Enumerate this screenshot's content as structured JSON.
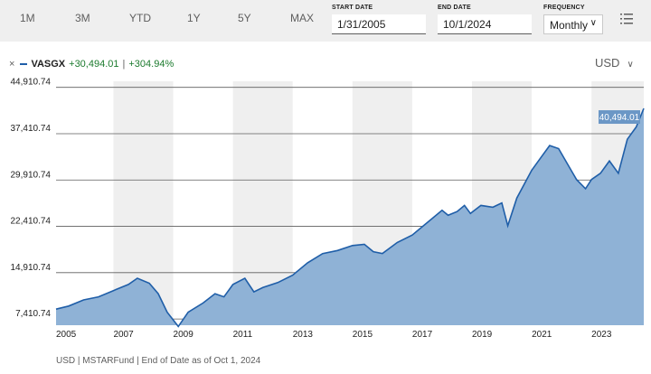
{
  "toolbar": {
    "ranges": [
      "1M",
      "3M",
      "YTD",
      "1Y",
      "5Y",
      "MAX"
    ],
    "start_date_label": "START DATE",
    "start_date": "1/31/2005",
    "end_date_label": "END DATE",
    "end_date": "10/1/2024",
    "frequency_label": "FREQUENCY",
    "frequency": "Monthly"
  },
  "legend": {
    "close_symbol": "×",
    "ticker": "VASGX",
    "gain": "+30,494.01",
    "separator": "|",
    "gain_pct": "+304.94%",
    "color": "#1f5ea8"
  },
  "currency": "USD",
  "footer": "USD | MSTARFund | End of Date as of Oct 1, 2024",
  "colors": {
    "line": "#1f5ea8",
    "area": "#8fb2d6",
    "band": "#efefef",
    "gain": "#1b7a2d",
    "end_tag": "#6b97c6"
  },
  "chart_data": {
    "type": "area",
    "series": [
      {
        "name": "VASGX",
        "x": [
          2005.08,
          2005.5,
          2006.0,
          2006.5,
          2007.0,
          2007.5,
          2007.8,
          2008.2,
          2008.5,
          2008.8,
          2009.17,
          2009.5,
          2010.0,
          2010.4,
          2010.7,
          2011.0,
          2011.4,
          2011.7,
          2012.0,
          2012.5,
          2013.0,
          2013.5,
          2014.0,
          2014.5,
          2015.0,
          2015.4,
          2015.7,
          2016.0,
          2016.5,
          2017.0,
          2017.5,
          2018.0,
          2018.2,
          2018.5,
          2018.75,
          2018.95,
          2019.3,
          2019.7,
          2020.0,
          2020.2,
          2020.5,
          2021.0,
          2021.3,
          2021.6,
          2021.9,
          2022.2,
          2022.5,
          2022.8,
          2023.0,
          2023.3,
          2023.6,
          2023.9,
          2024.2,
          2024.5,
          2024.75
        ],
        "values": [
          9000,
          9500,
          10500,
          11000,
          12000,
          13000,
          14000,
          13200,
          11500,
          8500,
          6200,
          8500,
          10000,
          11500,
          11000,
          13000,
          14000,
          11800,
          12500,
          13300,
          14500,
          16500,
          18000,
          18500,
          19300,
          19500,
          18300,
          18000,
          19800,
          21000,
          23000,
          25000,
          24200,
          24800,
          25800,
          24500,
          25800,
          25500,
          26200,
          22500,
          27000,
          31500,
          33500,
          35500,
          35000,
          32500,
          30000,
          28500,
          30000,
          31000,
          33000,
          31000,
          36500,
          38500,
          41500
        ]
      }
    ],
    "end_label": "40,494.01",
    "xlim": [
      2005.08,
      2024.75
    ],
    "ylim": [
      6400,
      45600
    ],
    "yticks": [
      7410.74,
      14910.74,
      22410.74,
      29910.74,
      37410.74,
      44910.74
    ],
    "ytick_labels": [
      "7,410.74",
      "14,910.74",
      "22,410.74",
      "29,910.74",
      "37,410.74",
      "44,910.74"
    ],
    "xticks": [
      2005,
      2007,
      2009,
      2011,
      2013,
      2015,
      2017,
      2019,
      2021,
      2023
    ],
    "xtick_labels": [
      "2005",
      "2007",
      "2009",
      "2011",
      "2013",
      "2015",
      "2017",
      "2019",
      "2021",
      "2023"
    ],
    "grid": true,
    "legend": "top-left"
  }
}
